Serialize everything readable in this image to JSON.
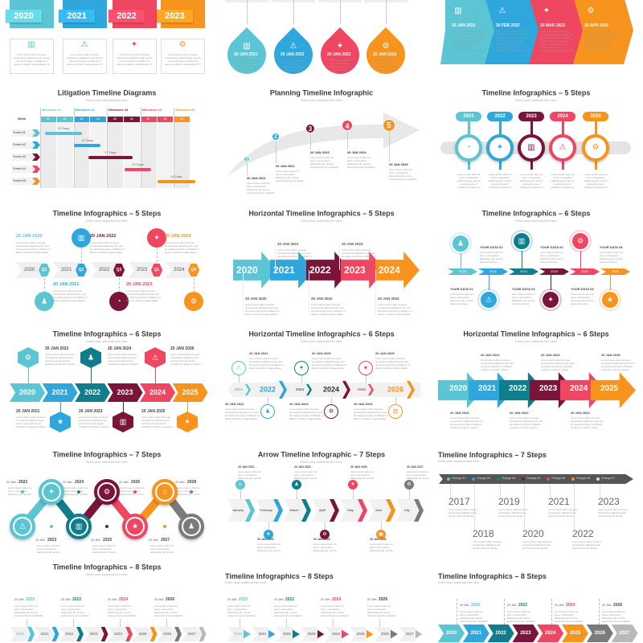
{
  "palette": [
    "#5bc5d3",
    "#2fa7dc",
    "#0f7d8b",
    "#7a1439",
    "#ef4662",
    "#f7941e",
    "#7b7b7b",
    "#b9b9b9"
  ],
  "subhead": "Enter your subhead line here",
  "lorem": "Lorem ipsum dolor sit amet, consectetur adipiscing elit, sed do eiusmod tempor incididunt ut labore et dolore magna aliqua. Ut enim ad minim veniam, quis nostrud exercitation ullamco laboris nisi ut aliquip ex ea commodo consequat.",
  "panels": [
    {
      "years": [
        "2020",
        "2021",
        "2022",
        "2023"
      ],
      "icons": [
        "chart",
        "warning",
        "handshake",
        "gear"
      ]
    },
    {
      "dates": [
        "20 JAN 2021",
        "20 JAN 2022",
        "20 JAN 2023",
        "20 JAN 2024"
      ],
      "icons": [
        "chart",
        "warning",
        "handshake",
        "gear"
      ]
    },
    {
      "dates": [
        "20 JAN 2021",
        "20 FEB 2022",
        "20 MAR 2023",
        "20 APR 2024"
      ],
      "icons": [
        "chart",
        "warning",
        "handshake",
        "gear"
      ]
    },
    {
      "title": "Litigation Timeline Diagrams",
      "week_label": "Week",
      "milestones": [
        "Milestone #1",
        "Milestone #2",
        "Milestone #3",
        "Milestone #4",
        "Milestone #5"
      ],
      "weeks": [
        "#1",
        "#2",
        "#3",
        "#4",
        "#5",
        "#6",
        "#7",
        "#8",
        "#9"
      ],
      "events": [
        {
          "label": "Event #1",
          "duration": "12 Days"
        },
        {
          "label": "Event #2",
          "duration": "10 Days"
        },
        {
          "label": "Event #3",
          "duration": "17 Days"
        },
        {
          "label": "Event #4",
          "duration": "10 Days"
        },
        {
          "label": "Event #5",
          "duration": "14 Days"
        }
      ]
    },
    {
      "title": "Planning Timeline Infographic",
      "steps": [
        {
          "num": "1",
          "date": "20 JAN 2021"
        },
        {
          "num": "2",
          "date": "20 JAN 2022"
        },
        {
          "num": "3",
          "date": "20 JAN 2023"
        },
        {
          "num": "4",
          "date": "20 JAN 2024"
        },
        {
          "num": "5",
          "date": "20 JAN 2025"
        }
      ]
    },
    {
      "title": "Timeline Infographics – 5 Steps",
      "years": [
        "2021",
        "2022",
        "2023",
        "2024",
        "2024"
      ],
      "icons": [
        "clock",
        "handshake",
        "chart",
        "warning",
        "gear"
      ]
    },
    {
      "title": "Timeline Infographics – 5 Steps",
      "steps": [
        {
          "year": "2020",
          "quarter": "Q1",
          "date": "20 JAN 2020",
          "icon": "person"
        },
        {
          "year": "2021",
          "quarter": "Q2",
          "date": "20 JAN 2021",
          "icon": "chart"
        },
        {
          "year": "2022",
          "quarter": "Q3",
          "date": "20 JAN 2022",
          "icon": "clock"
        },
        {
          "year": "2023",
          "quarter": "Q1",
          "date": "20 JAN 2023",
          "icon": "handshake"
        },
        {
          "year": "2024",
          "quarter": "Q4",
          "date": "20 JAN 2024",
          "icon": "gear"
        }
      ]
    },
    {
      "title": "Horizontal Timeline Infographics – 5 Steps",
      "years": [
        "2020",
        "2021",
        "2022",
        "2023",
        "2024"
      ],
      "dates": [
        "20 JAN 2020",
        "20 JAN 2021",
        "20 JAN 2022",
        "20 JAN 2023",
        "20 JAN 2024"
      ]
    },
    {
      "title": "Timeline Infographics – 6 Steps",
      "years": [
        "2020",
        "2021",
        "2022",
        "2023",
        "2024",
        "2025"
      ],
      "labels": [
        "YOUR DATA 01",
        "YOUR DATA 02",
        "YOUR DATA 03",
        "YOUR DATA 04",
        "YOUR DATA 05",
        "YOUR DATA 06"
      ],
      "icons": [
        "person",
        "warning",
        "chart",
        "handshake",
        "gear",
        "star"
      ]
    },
    {
      "title": "Timeline Infographics – 6 Steps",
      "years": [
        "2020",
        "2021",
        "2022",
        "2023",
        "2024",
        "2025"
      ],
      "dates": [
        "20 JAN 2021",
        "20 JAN 2022",
        "20 JAN 2023",
        "20 JAN 2024",
        "20 JAN 2025",
        "20 JAN 2026"
      ],
      "icons": [
        "gear",
        "star",
        "person",
        "chart",
        "warning",
        "handshake"
      ]
    },
    {
      "title": "Horizontal Timeline Infographics – 6 Steps",
      "years": [
        "2021",
        "2022",
        "2023",
        "2024",
        "2025",
        "2026"
      ],
      "dates": [
        "20 JAN 2021",
        "20 JAN 2022",
        "20 JAN 2023",
        "20 JAN 2024",
        "20 JAN 2025",
        "20 JAN 2026"
      ],
      "icons": [
        "warning",
        "person",
        "handshake",
        "gear",
        "star",
        "chart"
      ]
    },
    {
      "title": "Horizontal Timeline Infographics – 6 Steps",
      "years": [
        "2020",
        "2021",
        "2022",
        "2023",
        "2024",
        "2025"
      ],
      "dates": [
        "20 JAN 2020",
        "20 JAN 2021",
        "20 JAN 2022",
        "20 JAN 2023",
        "20 JAN 2024",
        "20 JAN 2025"
      ]
    },
    {
      "title": "Timeline Infographics – 7 Steps",
      "dates": [
        {
          "prefix": "20 JAN",
          "year": "2022"
        },
        {
          "prefix": "20 JAN",
          "year": "2023"
        },
        {
          "prefix": "20 JAN",
          "year": "2024"
        },
        {
          "prefix": "20 JAN",
          "year": "2025"
        },
        {
          "prefix": "20 JAN",
          "year": "2026"
        },
        {
          "prefix": "20 JAN",
          "year": "2027"
        },
        {
          "prefix": "20 JAN",
          "year": "2028"
        }
      ],
      "icons": [
        "warning",
        "handshake",
        "chart",
        "gear",
        "star",
        "house",
        "person"
      ]
    },
    {
      "title": "Arrow Timeline Infographic – 7 Steps",
      "months": [
        "January",
        "February",
        "March",
        "April",
        "May",
        "June",
        "July"
      ],
      "dates": [
        "20 JAN 2021",
        "20 JAN 2022",
        "20 JAN 2023",
        "20 JAN 2024",
        "20 JAN 2025",
        "20 JAN 2026",
        "20 JAN 2027"
      ],
      "icons": [
        "warning",
        "star",
        "person",
        "gear",
        "heart",
        "lock",
        "gear"
      ]
    },
    {
      "title": "Timeline Infographics – 7 Steps",
      "changes": [
        "Change #1",
        "Change #2",
        "Change #3",
        "Change #4",
        "Change #5",
        "Change #6",
        "Change #7"
      ],
      "years": [
        "2017",
        "2018",
        "2019",
        "2020",
        "2021",
        "2022",
        "2023"
      ]
    },
    {
      "title": "Timeline Infographics – 8 Steps",
      "years": [
        "2020",
        "2021",
        "2022",
        "2023",
        "2024",
        "2025",
        "2026",
        "2027"
      ],
      "dates": [
        {
          "prefix": "20 JAN",
          "year": "2020"
        },
        {
          "prefix": "20 JAN",
          "year": "2022"
        },
        {
          "prefix": "20 JAN",
          "year": "2024"
        },
        {
          "prefix": "20 JAN",
          "year": "2026"
        }
      ]
    },
    {
      "title": "Timeline Infographics – 8 Steps",
      "years": [
        "2020",
        "2021",
        "2022",
        "2023",
        "2024",
        "2025",
        "2026",
        "2027"
      ],
      "dates": [
        {
          "prefix": "20 JAN",
          "year": "2020"
        },
        {
          "prefix": "20 JAN",
          "year": "2022"
        },
        {
          "prefix": "20 JAN",
          "year": "2024"
        },
        {
          "prefix": "20 JAN",
          "year": "2026"
        }
      ]
    },
    {
      "title": "Timeline Infographics – 8 Steps",
      "years": [
        "2020",
        "2021",
        "2022",
        "2023",
        "2024",
        "2025",
        "2026",
        "2027"
      ],
      "dates": [
        {
          "prefix": "20 JAN",
          "year": "2020"
        },
        {
          "prefix": "20 JAN",
          "year": "2022"
        },
        {
          "prefix": "20 JAN",
          "year": "2024"
        },
        {
          "prefix": "20 JAN",
          "year": "2026"
        }
      ]
    }
  ]
}
